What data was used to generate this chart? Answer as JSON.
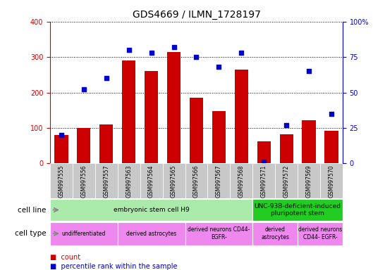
{
  "title": "GDS4669 / ILMN_1728197",
  "samples": [
    "GSM997555",
    "GSM997556",
    "GSM997557",
    "GSM997563",
    "GSM997564",
    "GSM997565",
    "GSM997566",
    "GSM997567",
    "GSM997568",
    "GSM997571",
    "GSM997572",
    "GSM997569",
    "GSM997570"
  ],
  "counts": [
    80,
    100,
    110,
    290,
    260,
    315,
    185,
    147,
    265,
    62,
    82,
    122,
    92
  ],
  "percentiles": [
    20,
    52,
    60,
    80,
    78,
    82,
    75,
    68,
    78,
    1,
    27,
    65,
    35
  ],
  "bar_color": "#cc0000",
  "dot_color": "#0000cc",
  "left_ylim": [
    0,
    400
  ],
  "right_ylim": [
    0,
    100
  ],
  "left_yticks": [
    0,
    100,
    200,
    300,
    400
  ],
  "right_yticks": [
    0,
    25,
    50,
    75,
    100
  ],
  "right_yticklabels": [
    "0",
    "25",
    "50",
    "75",
    "100%"
  ],
  "xtick_bg": "#c8c8c8",
  "cell_line_groups": [
    {
      "label": "embryonic stem cell H9",
      "start": 0,
      "end": 9,
      "color": "#aaeaaa"
    },
    {
      "label": "UNC-93B-deficient-induced\npluripotent stem",
      "start": 9,
      "end": 13,
      "color": "#22cc22"
    }
  ],
  "cell_type_groups": [
    {
      "label": "undifferentiated",
      "start": 0,
      "end": 3,
      "color": "#ee88ee"
    },
    {
      "label": "derived astrocytes",
      "start": 3,
      "end": 6,
      "color": "#ee88ee"
    },
    {
      "label": "derived neurons CD44-\nEGFR-",
      "start": 6,
      "end": 9,
      "color": "#ee88ee"
    },
    {
      "label": "derived\nastrocytes",
      "start": 9,
      "end": 11,
      "color": "#ee88ee"
    },
    {
      "label": "derived neurons\nCD44- EGFR-",
      "start": 11,
      "end": 13,
      "color": "#ee88ee"
    }
  ],
  "legend_count_color": "#cc0000",
  "legend_dot_color": "#0000cc",
  "tick_label_color_left": "#cc0000",
  "tick_label_color_right": "#0000cc",
  "label_fontsize": 7,
  "tick_fontsize": 7,
  "title_fontsize": 10
}
